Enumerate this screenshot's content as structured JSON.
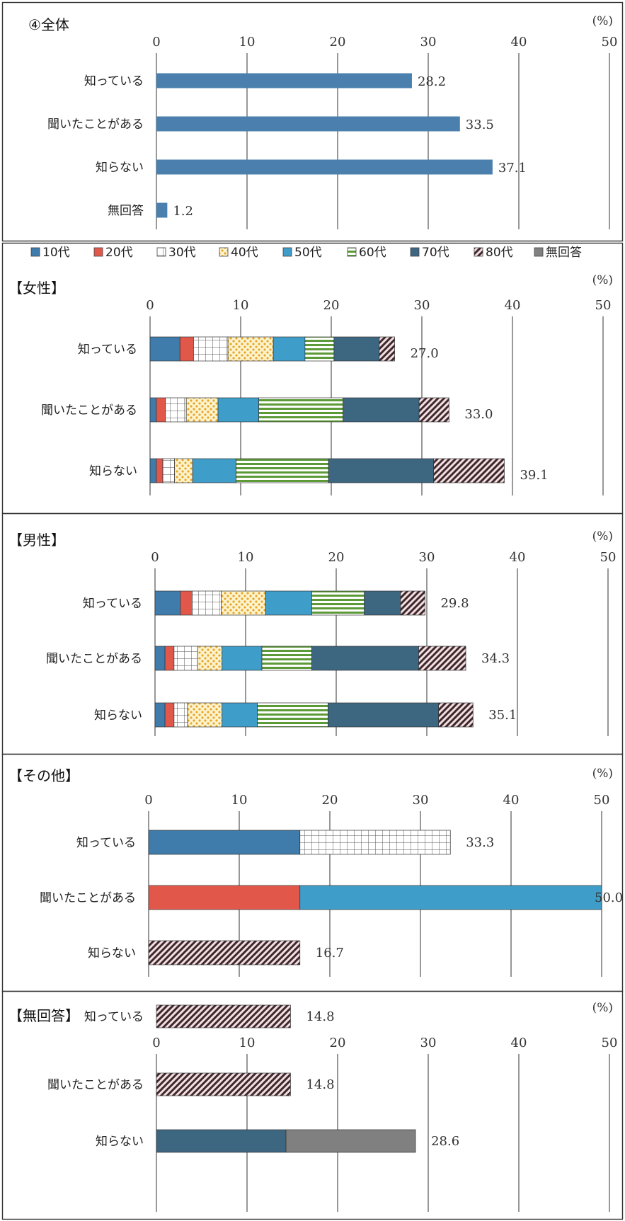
{
  "legend": [
    {
      "label": "10代",
      "color": "#3f7cab",
      "pattern": "solid"
    },
    {
      "label": "20代",
      "color": "#e1584b",
      "pattern": "solid"
    },
    {
      "label": "30代",
      "color": "#ffffff",
      "pattern": "grid"
    },
    {
      "label": "40代",
      "color": "#f3c94a",
      "pattern": "dots"
    },
    {
      "label": "50代",
      "color": "#3f9dc9",
      "pattern": "solid"
    },
    {
      "label": "60代",
      "color": "#6aa342",
      "pattern": "hstripes"
    },
    {
      "label": "70代",
      "color": "#3d6681",
      "pattern": "solid"
    },
    {
      "label": "80代",
      "color": "#c44a55",
      "pattern": "diag"
    },
    {
      "label": "無回答",
      "color": "#808080",
      "pattern": "solid"
    }
  ],
  "unit_label": "(%)",
  "chart_data": [
    {
      "type": "bar",
      "title": "④全体",
      "orientation": "horizontal",
      "stacked": false,
      "categories": [
        "知っている",
        "聞いたことがある",
        "知らない",
        "無回答"
      ],
      "values": [
        28.2,
        33.5,
        37.1,
        1.2
      ],
      "value_labels": [
        "28.2",
        "33.5",
        "37.1",
        "1.2"
      ],
      "xlim": [
        0,
        50
      ],
      "xticks": [
        "0",
        "10",
        "20",
        "30",
        "40",
        "50"
      ],
      "grid": true,
      "color": "#4a7fae"
    },
    {
      "type": "bar",
      "title": "【女性】",
      "orientation": "horizontal",
      "stacked": true,
      "categories": [
        "知っている",
        "聞いたことがある",
        "知らない"
      ],
      "series": [
        {
          "name": "10代",
          "values": [
            3.3,
            0.7,
            0.7
          ]
        },
        {
          "name": "20代",
          "values": [
            1.5,
            1.0,
            0.7
          ]
        },
        {
          "name": "30代",
          "values": [
            3.8,
            2.3,
            1.3
          ]
        },
        {
          "name": "40代",
          "values": [
            5.0,
            3.5,
            2.0
          ]
        },
        {
          "name": "50代",
          "values": [
            3.5,
            4.5,
            4.8
          ]
        },
        {
          "name": "60代",
          "values": [
            3.2,
            9.3,
            10.2
          ]
        },
        {
          "name": "70代",
          "values": [
            5.0,
            8.4,
            11.6
          ]
        },
        {
          "name": "80代",
          "values": [
            1.7,
            3.3,
            7.8
          ]
        },
        {
          "name": "無回答",
          "values": [
            0,
            0,
            0
          ]
        }
      ],
      "totals": [
        "27.0",
        "33.0",
        "39.1"
      ],
      "xlim": [
        0,
        50
      ],
      "xticks": [
        "0",
        "10",
        "20",
        "30",
        "40",
        "50"
      ],
      "grid": true
    },
    {
      "type": "bar",
      "title": "【男性】",
      "orientation": "horizontal",
      "stacked": true,
      "categories": [
        "知っている",
        "聞いたことがある",
        "知らない"
      ],
      "series": [
        {
          "name": "10代",
          "values": [
            2.8,
            1.1,
            1.1
          ]
        },
        {
          "name": "20代",
          "values": [
            1.3,
            1.0,
            1.0
          ]
        },
        {
          "name": "30代",
          "values": [
            3.2,
            2.6,
            1.5
          ]
        },
        {
          "name": "40代",
          "values": [
            4.9,
            2.7,
            3.8
          ]
        },
        {
          "name": "50代",
          "values": [
            5.1,
            4.4,
            3.9
          ]
        },
        {
          "name": "60代",
          "values": [
            5.8,
            5.5,
            7.8
          ]
        },
        {
          "name": "70代",
          "values": [
            4.0,
            11.8,
            12.2
          ]
        },
        {
          "name": "80代",
          "values": [
            2.7,
            5.2,
            3.8
          ]
        },
        {
          "name": "無回答",
          "values": [
            0,
            0,
            0
          ]
        }
      ],
      "totals": [
        "29.8",
        "34.3",
        "35.1"
      ],
      "xlim": [
        0,
        50
      ],
      "xticks": [
        "0",
        "10",
        "20",
        "30",
        "40",
        "50"
      ],
      "grid": true
    },
    {
      "type": "bar",
      "title": "【その他】",
      "orientation": "horizontal",
      "stacked": true,
      "categories": [
        "知っている",
        "聞いたことがある",
        "知らない"
      ],
      "series": [
        {
          "name": "10代",
          "values": [
            16.7,
            0,
            0
          ]
        },
        {
          "name": "20代",
          "values": [
            0,
            16.7,
            0
          ]
        },
        {
          "name": "30代",
          "values": [
            16.6,
            0,
            0
          ]
        },
        {
          "name": "40代",
          "values": [
            0,
            0,
            0
          ]
        },
        {
          "name": "50代",
          "values": [
            0,
            33.3,
            0
          ]
        },
        {
          "name": "60代",
          "values": [
            0,
            0,
            0
          ]
        },
        {
          "name": "70代",
          "values": [
            0,
            0,
            0
          ]
        },
        {
          "name": "80代",
          "values": [
            0,
            0,
            16.7
          ]
        },
        {
          "name": "無回答",
          "values": [
            0,
            0,
            0
          ]
        }
      ],
      "totals": [
        "33.3",
        "50.0",
        "16.7"
      ],
      "xlim": [
        0,
        50
      ],
      "xticks": [
        "0",
        "10",
        "20",
        "30",
        "40",
        "50"
      ],
      "grid": true
    },
    {
      "type": "bar",
      "title": "【無回答】",
      "orientation": "horizontal",
      "stacked": true,
      "categories": [
        "知っている",
        "聞いたことがある",
        "知らない"
      ],
      "series": [
        {
          "name": "10代",
          "values": [
            0,
            0,
            0
          ]
        },
        {
          "name": "20代",
          "values": [
            0,
            0,
            0
          ]
        },
        {
          "name": "30代",
          "values": [
            0,
            0,
            0
          ]
        },
        {
          "name": "40代",
          "values": [
            0,
            0,
            0
          ]
        },
        {
          "name": "50代",
          "values": [
            0,
            0,
            0
          ]
        },
        {
          "name": "60代",
          "values": [
            0,
            0,
            0
          ]
        },
        {
          "name": "70代",
          "values": [
            0,
            0,
            14.3
          ]
        },
        {
          "name": "80代",
          "values": [
            14.8,
            14.8,
            0
          ]
        },
        {
          "name": "無回答",
          "values": [
            0,
            0,
            14.3
          ]
        }
      ],
      "totals": [
        "14.8",
        "14.8",
        "28.6"
      ],
      "xlim": [
        0,
        50
      ],
      "xticks": [
        "0",
        "10",
        "20",
        "30",
        "40",
        "50"
      ],
      "grid": true
    }
  ]
}
